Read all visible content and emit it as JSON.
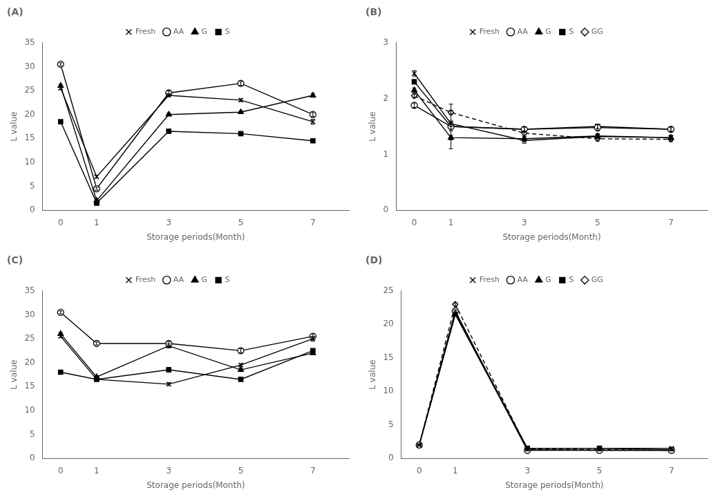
{
  "chart_data": [
    {
      "type": "line",
      "annotation": "(A)",
      "x": [
        0,
        1,
        3,
        5,
        7
      ],
      "xlabel": "Storage periods(Month)",
      "ylabel": "L value",
      "xlim": [
        -0.5,
        8.0
      ],
      "xticks": [
        0,
        1,
        3,
        5,
        7
      ],
      "ylim": [
        0,
        35
      ],
      "yticks": [
        0,
        5,
        10,
        15,
        20,
        25,
        30,
        35
      ],
      "grid": false,
      "legend": "top",
      "series": [
        {
          "name": "Fresh",
          "color": "black",
          "marker": "x",
          "line_style": "solid",
          "values": [
            25.5,
            7.0,
            24.0,
            23.0,
            18.5
          ],
          "errors": [
            0.3,
            0.3,
            0.3,
            0.3,
            0.5
          ]
        },
        {
          "name": "AA",
          "color": "black",
          "marker": "open circle",
          "line_style": "solid",
          "values": [
            30.5,
            4.5,
            24.5,
            26.5,
            20.0
          ],
          "errors": [
            0.3,
            0.3,
            0.4,
            0.4,
            0.4
          ]
        },
        {
          "name": "G",
          "color": "black",
          "marker": "triangle",
          "line_style": "solid",
          "values": [
            26.0,
            2.0,
            20.0,
            20.5,
            24.0
          ],
          "errors": [
            0.3,
            0.2,
            0.3,
            0.3,
            0.4
          ]
        },
        {
          "name": "S",
          "color": "black",
          "marker": "square",
          "line_style": "solid",
          "values": [
            18.5,
            1.5,
            16.5,
            16.0,
            14.5
          ],
          "errors": [
            0.2,
            0.2,
            0.2,
            0.2,
            0.3
          ]
        }
      ]
    },
    {
      "type": "line",
      "annotation": "(B)",
      "x": [
        0,
        1,
        3,
        5,
        7
      ],
      "xlabel": "Storage periods(Month)",
      "ylabel": "L value",
      "xlim": [
        -0.5,
        8.0
      ],
      "xticks": [
        0,
        1,
        3,
        5,
        7
      ],
      "ylim": [
        0,
        3
      ],
      "yticks": [
        0,
        1,
        2,
        3
      ],
      "grid": false,
      "legend": "top",
      "series": [
        {
          "name": "Fresh",
          "color": "black",
          "marker": "x",
          "line_style": "solid",
          "values": [
            2.45,
            1.55,
            1.25,
            1.32,
            1.3
          ],
          "errors": [
            0.05,
            0.05,
            0.05,
            0.04,
            0.04
          ]
        },
        {
          "name": "AA",
          "color": "black",
          "marker": "open circle",
          "line_style": "solid",
          "values": [
            1.88,
            1.5,
            1.45,
            1.48,
            1.45
          ],
          "errors": [
            0.04,
            0.4,
            0.04,
            0.06,
            0.04
          ]
        },
        {
          "name": "G",
          "color": "black",
          "marker": "triangle",
          "line_style": "solid",
          "values": [
            2.15,
            1.3,
            1.28,
            1.33,
            1.3
          ],
          "errors": [
            0.04,
            0.04,
            0.04,
            0.04,
            0.04
          ]
        },
        {
          "name": "S",
          "color": "black",
          "marker": "square",
          "line_style": "solid",
          "values": [
            2.3,
            1.5,
            1.45,
            1.5,
            1.45
          ],
          "errors": [
            0.04,
            0.08,
            0.04,
            0.04,
            0.04
          ]
        },
        {
          "name": "GG",
          "color": "black",
          "marker": "open diamond",
          "line_style": "dashed",
          "values": [
            2.05,
            1.75,
            1.38,
            1.28,
            1.27
          ],
          "errors": [
            0.04,
            0.04,
            0.04,
            0.04,
            0.04
          ]
        }
      ]
    },
    {
      "type": "line",
      "annotation": "(C)",
      "x": [
        0,
        1,
        3,
        5,
        7
      ],
      "xlabel": "Storage periods(Month)",
      "ylabel": "L value",
      "xlim": [
        -0.5,
        8.0
      ],
      "xticks": [
        0,
        1,
        3,
        5,
        7
      ],
      "ylim": [
        0,
        35
      ],
      "yticks": [
        0,
        5,
        10,
        15,
        20,
        25,
        30,
        35
      ],
      "grid": false,
      "legend": "top",
      "series": [
        {
          "name": "Fresh",
          "color": "black",
          "marker": "x",
          "line_style": "solid",
          "values": [
            25.5,
            16.5,
            15.5,
            19.5,
            25.0
          ],
          "errors": [
            0.3,
            0.3,
            0.3,
            0.3,
            0.5
          ]
        },
        {
          "name": "AA",
          "color": "black",
          "marker": "open circle",
          "line_style": "solid",
          "values": [
            30.5,
            24.0,
            24.0,
            22.5,
            25.5
          ],
          "errors": [
            0.3,
            0.3,
            0.4,
            0.4,
            0.5
          ]
        },
        {
          "name": "G",
          "color": "black",
          "marker": "triangle",
          "line_style": "solid",
          "values": [
            26.0,
            17.0,
            23.5,
            18.5,
            22.0
          ],
          "errors": [
            0.3,
            0.3,
            0.4,
            0.3,
            0.3
          ]
        },
        {
          "name": "S",
          "color": "black",
          "marker": "square",
          "line_style": "solid",
          "values": [
            18.0,
            16.5,
            18.5,
            16.5,
            22.5
          ],
          "errors": [
            0.2,
            0.2,
            0.5,
            0.2,
            0.3
          ]
        }
      ]
    },
    {
      "type": "line",
      "annotation": "(D)",
      "x": [
        0,
        1,
        3,
        5,
        7
      ],
      "xlabel": "Storage periods(Month)",
      "ylabel": "L value",
      "xlim": [
        -0.5,
        8.0
      ],
      "xticks": [
        0,
        1,
        3,
        5,
        7
      ],
      "ylim": [
        0,
        25
      ],
      "yticks": [
        0,
        5,
        10,
        15,
        20,
        25
      ],
      "grid": false,
      "legend": "top",
      "series": [
        {
          "name": "Fresh",
          "color": "black",
          "marker": "x",
          "line_style": "solid",
          "values": [
            2.0,
            21.5,
            1.5,
            1.5,
            1.5
          ],
          "errors": [
            0.1,
            0.2,
            0.1,
            0.1,
            0.1
          ]
        },
        {
          "name": "AA",
          "color": "black",
          "marker": "open circle",
          "line_style": "solid",
          "values": [
            2.0,
            22.0,
            1.2,
            1.2,
            1.2
          ],
          "errors": [
            0.1,
            0.2,
            0.1,
            0.1,
            0.1
          ]
        },
        {
          "name": "G",
          "color": "black",
          "marker": "triangle",
          "line_style": "solid",
          "values": [
            2.0,
            21.5,
            1.3,
            1.2,
            1.2
          ],
          "errors": [
            0.1,
            0.2,
            0.1,
            0.1,
            0.1
          ]
        },
        {
          "name": "S",
          "color": "black",
          "marker": "square",
          "line_style": "solid",
          "values": [
            2.0,
            21.8,
            1.5,
            1.5,
            1.3
          ],
          "errors": [
            0.1,
            0.2,
            0.1,
            0.1,
            0.1
          ]
        },
        {
          "name": "GG",
          "color": "black",
          "marker": "open diamond",
          "line_style": "dashed",
          "values": [
            2.0,
            23.0,
            1.4,
            1.3,
            1.2
          ],
          "errors": [
            0.1,
            0.2,
            0.1,
            0.1,
            0.1
          ]
        }
      ]
    }
  ]
}
